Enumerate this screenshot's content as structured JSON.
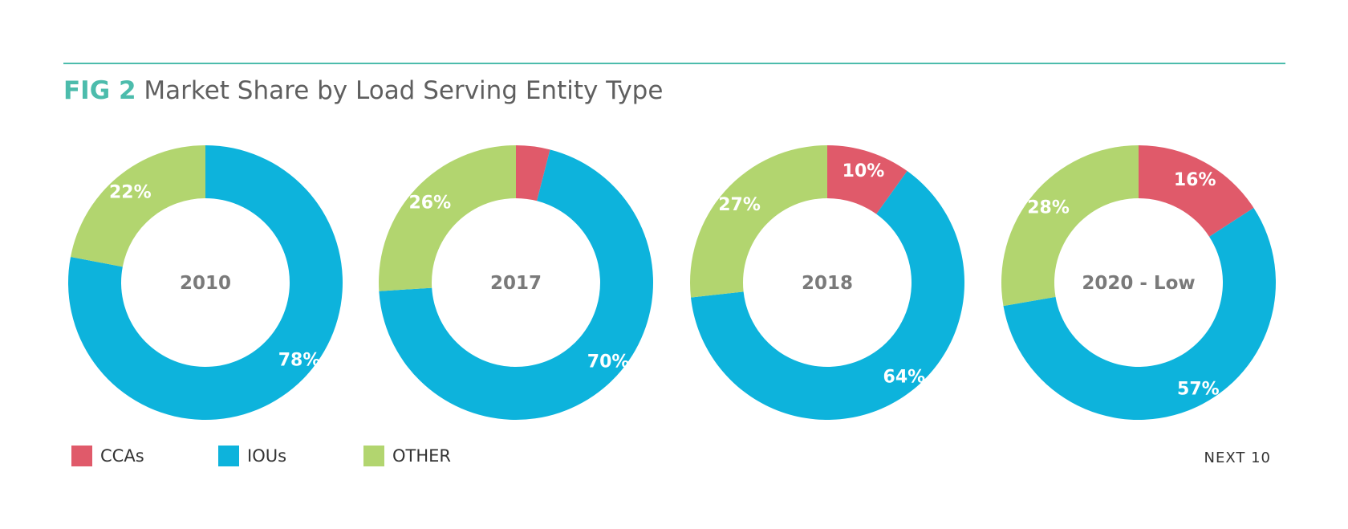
{
  "title": {
    "fig": "FIG 2",
    "text": "Market Share by Load Serving Entity Type"
  },
  "colors": {
    "accent": "#4cbcac",
    "CCAs": "#e05a6a",
    "IOUs": "#0db3dc",
    "OTHER": "#b2d56f"
  },
  "chart_data": {
    "type": "pie",
    "subtype": "donut",
    "title": "Market Share by Load Serving Entity Type",
    "legend": [
      "CCAs",
      "IOUs",
      "OTHER"
    ],
    "legend_position": "bottom-left",
    "charts": [
      {
        "label": "2010",
        "values": {
          "CCAs": 0,
          "IOUs": 78,
          "OTHER": 22
        },
        "labels": {
          "CCAs": "",
          "IOUs": "78%",
          "OTHER": "22%"
        }
      },
      {
        "label": "2017",
        "values": {
          "CCAs": 4,
          "IOUs": 70,
          "OTHER": 26
        },
        "labels": {
          "CCAs": "",
          "IOUs": "70%",
          "OTHER": "26%"
        }
      },
      {
        "label": "2018",
        "values": {
          "CCAs": 10,
          "IOUs": 64,
          "OTHER": 27
        },
        "labels": {
          "CCAs": "10%",
          "IOUs": "64%",
          "OTHER": "27%"
        }
      },
      {
        "label": "2020 - Low",
        "values": {
          "CCAs": 16,
          "IOUs": 57,
          "OTHER": 28
        },
        "labels": {
          "CCAs": "16%",
          "IOUs": "57%",
          "OTHER": "28%"
        }
      }
    ]
  },
  "legend": {
    "items": [
      {
        "label": "CCAs"
      },
      {
        "label": "IOUs"
      },
      {
        "label": "OTHER"
      }
    ]
  },
  "footer": {
    "text": "NEXT 10"
  }
}
